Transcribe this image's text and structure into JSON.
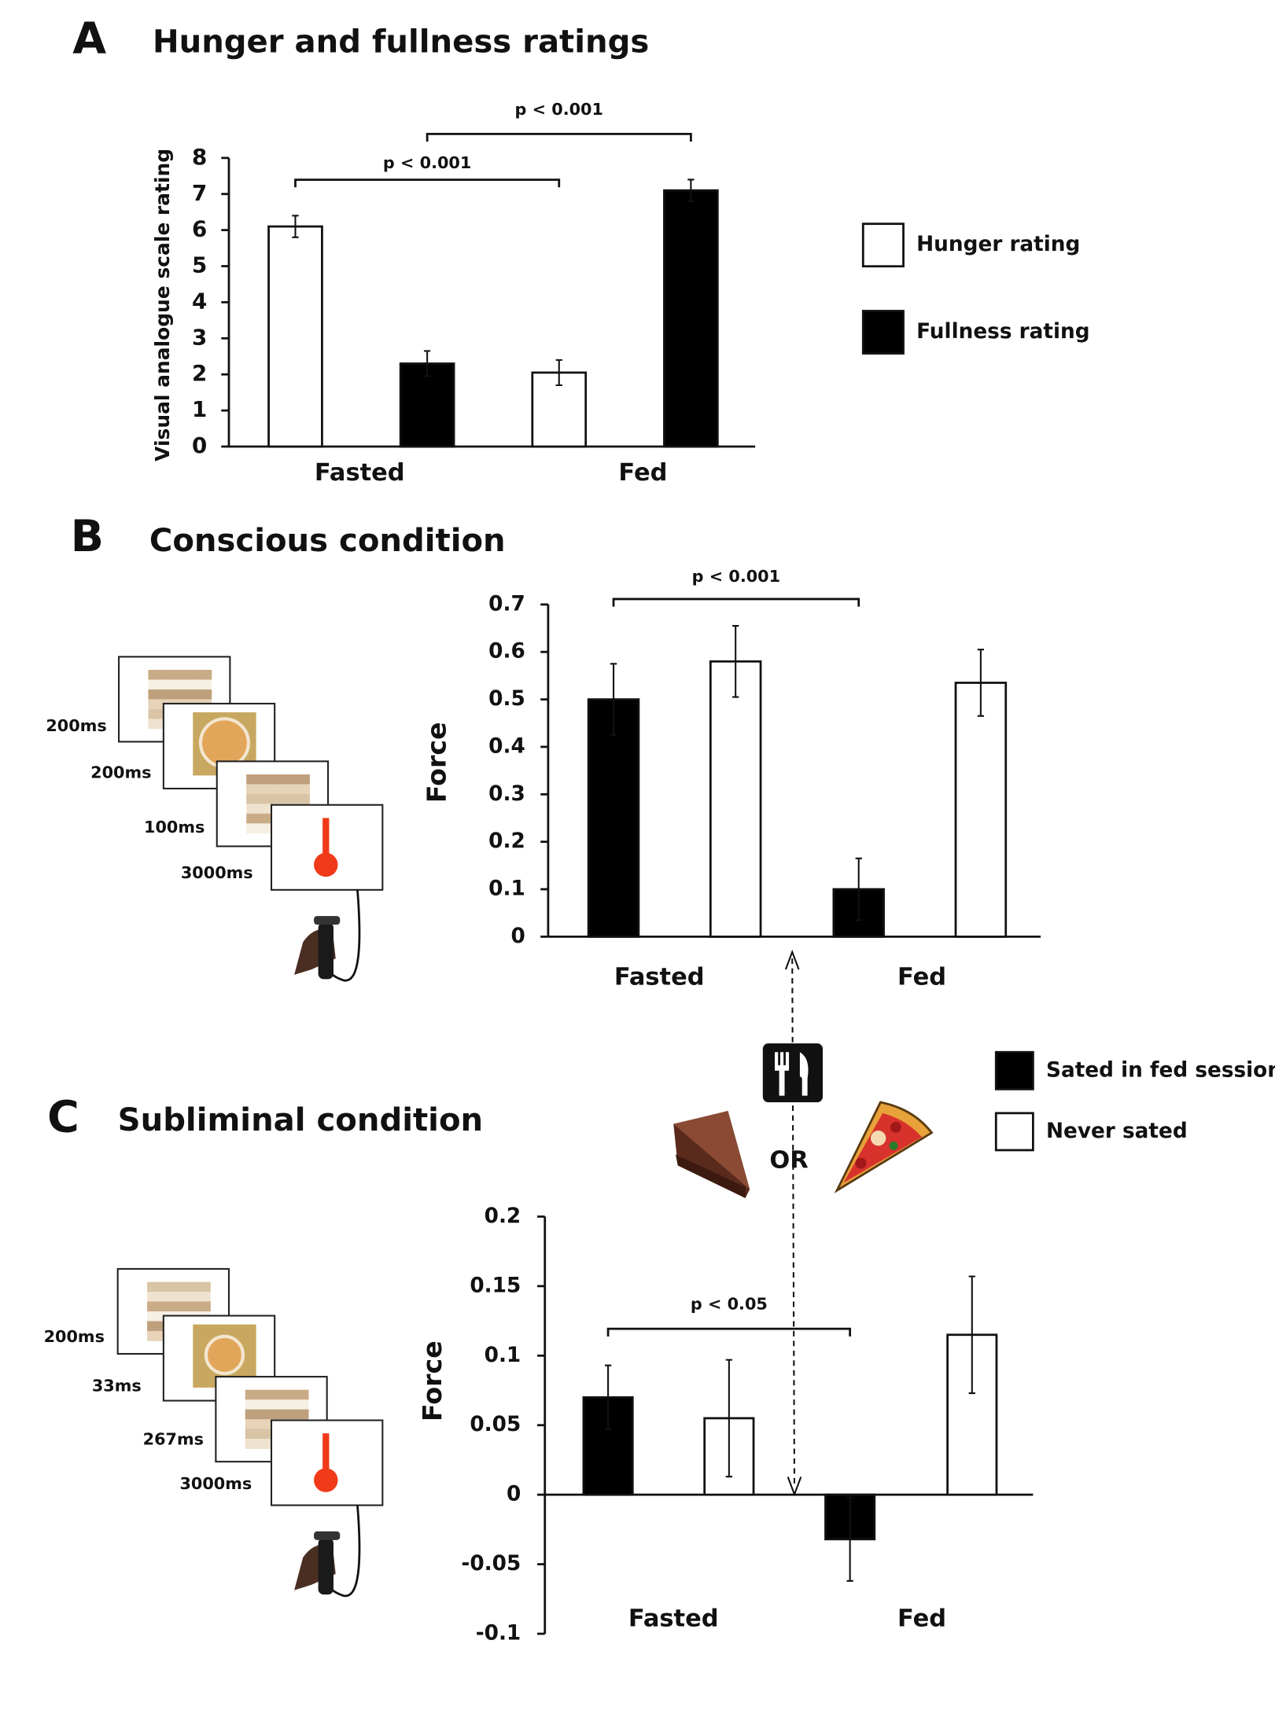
{
  "chart_data": [
    {
      "type": "bar",
      "panel": "A",
      "title": "Hunger and fullness ratings",
      "y_label": "Visual analogue scale rating",
      "categories": [
        "Fasted",
        "Fed"
      ],
      "series": [
        {
          "name": "Hunger rating",
          "color": "#ffffff",
          "values": [
            6.1,
            2.05
          ],
          "errors": [
            0.3,
            0.35
          ]
        },
        {
          "name": "Fullness rating",
          "color": "#000000",
          "values": [
            2.3,
            7.1
          ],
          "errors": [
            0.35,
            0.3
          ]
        }
      ],
      "ylim": [
        0,
        8
      ],
      "yticks": [
        0,
        1,
        2,
        3,
        4,
        5,
        6,
        7,
        8
      ],
      "annotations": [
        "p < 0.001",
        "p < 0.001"
      ]
    },
    {
      "type": "bar",
      "panel": "B",
      "title": "Conscious condition",
      "y_label": "Force",
      "categories": [
        "Fasted",
        "Fed"
      ],
      "series": [
        {
          "name": "Sated in fed session",
          "color": "#000000",
          "values": [
            0.5,
            0.1
          ],
          "errors": [
            0.075,
            0.065
          ]
        },
        {
          "name": "Never sated",
          "color": "#ffffff",
          "values": [
            0.58,
            0.535
          ],
          "errors": [
            0.075,
            0.07
          ]
        }
      ],
      "ylim": [
        0,
        0.7
      ],
      "yticks": [
        0,
        0.1,
        0.2,
        0.3,
        0.4,
        0.5,
        0.6,
        0.7
      ],
      "annotations": [
        "p < 0.001"
      ],
      "stimulus_durations": [
        "200ms",
        "200ms",
        "100ms",
        "3000ms"
      ]
    },
    {
      "type": "bar",
      "panel": "C",
      "title": "Subliminal condition",
      "y_label": "Force",
      "categories": [
        "Fasted",
        "Fed"
      ],
      "series": [
        {
          "color": "#000000",
          "values": [
            0.07,
            -0.032
          ],
          "errors": [
            0.023,
            0.03
          ]
        },
        {
          "color": "#ffffff",
          "values": [
            0.055,
            0.115
          ],
          "errors": [
            0.042,
            0.042
          ]
        }
      ],
      "ylim": [
        -0.1,
        0.2
      ],
      "yticks": [
        -0.1,
        -0.05,
        0,
        0.05,
        0.1,
        0.15,
        0.2
      ],
      "annotations": [
        "p < 0.05"
      ],
      "stimulus_durations": [
        "200ms",
        "33ms",
        "267ms",
        "3000ms"
      ]
    }
  ],
  "choice_label": "OR"
}
